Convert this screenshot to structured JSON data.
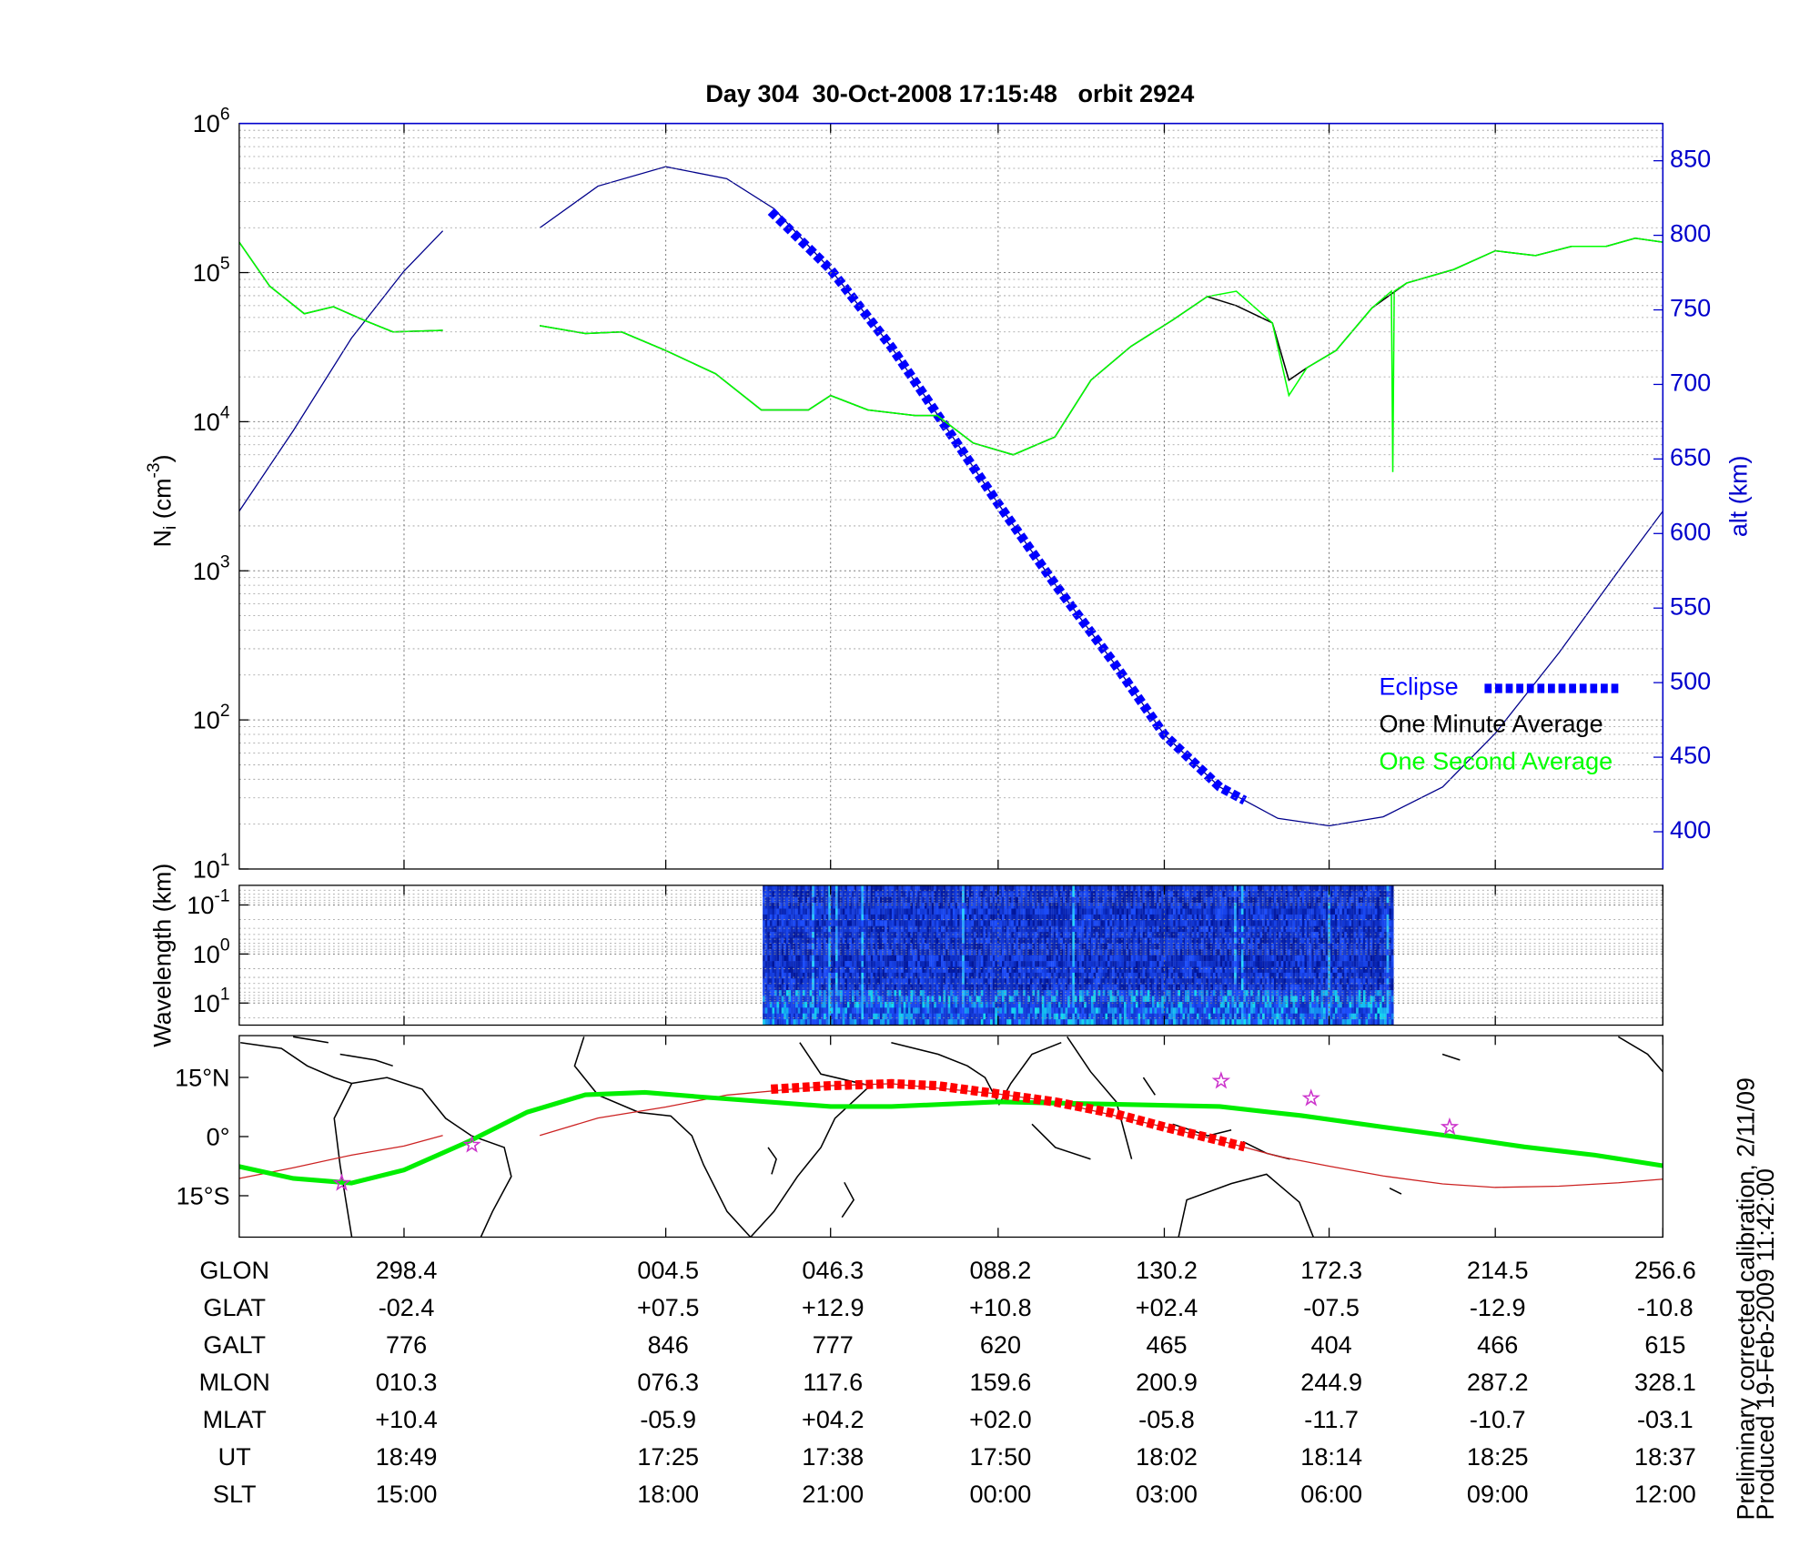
{
  "chart_data": [
    {
      "type": "line",
      "title": "Day 304  30-Oct-2008 17:15:48   orbit 2924",
      "ylabel": [
        "N",
        "i",
        " (cm",
        "-3",
        ")"
      ],
      "y2label": "alt (km)",
      "log_y": true,
      "xlim": [
        1014.2,
        1117.0
      ],
      "xticks": [
        1026.1,
        1045,
        1056.9,
        1069.0,
        1081.0,
        1092.9,
        1104.9,
        1117.0
      ],
      "ylim": [
        10,
        1000000
      ],
      "yticks": [
        {
          "value": 10,
          "label": "10",
          "exponent": "1"
        },
        {
          "value": 100,
          "label": "10",
          "exponent": "2"
        },
        {
          "value": 1000,
          "label": "10",
          "exponent": "3"
        },
        {
          "value": 10000,
          "label": "10",
          "exponent": "4"
        },
        {
          "value": 100000,
          "label": "10",
          "exponent": "5"
        },
        {
          "value": 1000000,
          "label": "10",
          "exponent": "6"
        }
      ],
      "yminorticks": [
        20,
        30,
        40,
        50,
        60,
        70,
        80,
        90,
        200,
        300,
        400,
        500,
        600,
        700,
        800,
        900,
        2000,
        3000,
        4000,
        5000,
        6000,
        7000,
        8000,
        9000,
        20000,
        30000,
        40000,
        50000,
        60000,
        70000,
        80000,
        90000,
        200000,
        300000,
        400000,
        500000,
        600000,
        700000,
        800000,
        900000
      ],
      "y2lim": [
        375,
        875
      ],
      "y2ticks": [
        400,
        450,
        500,
        550,
        600,
        650,
        700,
        750,
        800,
        850
      ],
      "grid": true,
      "legend": "lower right",
      "series": [
        {
          "color": "#00008b",
          "axis": "y2",
          "x": [
            1014.2,
            1018.1,
            1022.3,
            1026.1,
            1028.9,
            1032.4,
            1035.9,
            1040.1,
            1045,
            1049.4,
            1052.8,
            1056.9,
            1061.3,
            1064.6,
            1069.0,
            1073.1,
            1077.3,
            1081.0,
            1085.0,
            1089.2,
            1092.9,
            1096.8,
            1101.1,
            1104.9,
            1109.5,
            1113.8,
            1117.0
          ],
          "values": [
            615,
            669,
            731,
            776,
            803,
            null,
            805,
            833,
            846,
            838,
            818,
            777,
            725,
            680,
            620,
            566,
            514,
            465,
            430,
            409,
            404,
            410,
            430,
            466,
            520,
            575,
            615
          ]
        },
        {
          "name": "Eclipse",
          "color": "#0000ff",
          "axis": "y2",
          "style": "dashed",
          "x": [
            1052.6,
            1056.9,
            1061.3,
            1064.6,
            1069.0,
            1073.1,
            1077.3,
            1081.0,
            1085.0,
            1086.8
          ],
          "values": [
            816,
            777,
            725,
            680,
            620,
            566,
            514,
            465,
            430,
            421
          ]
        },
        {
          "name": "One Minute Average",
          "color": "#000000",
          "x": [
            1014.2,
            1016.4,
            1018.9,
            1021.0,
            1023.2,
            1025.3,
            1028.9,
            1032.4,
            1035.9,
            1039.2,
            1041.8,
            1045,
            1048.6,
            1051.9,
            1055.3,
            1056.9,
            1059.6,
            1063.0,
            1064.6,
            1067.2,
            1070.1,
            1073.1,
            1075.7,
            1078.6,
            1081.6,
            1084.1,
            1086.2,
            1088.8,
            1090.0,
            1091.3,
            1093.4,
            1096.0,
            1098.5,
            1101.9,
            1104.9,
            1107.8,
            1110.4,
            1112.9,
            1115.0,
            1117.0
          ],
          "values": [
            160000,
            81000,
            53000,
            59000,
            48000,
            40000,
            41000,
            null,
            44000,
            39000,
            40000,
            30000,
            21000,
            12000,
            12000,
            15000,
            12000,
            11000,
            11000,
            7200,
            6000,
            7900,
            19000,
            32000,
            48000,
            69000,
            60000,
            46000,
            19000,
            23000,
            30000,
            58000,
            85000,
            105000,
            140000,
            130000,
            150000,
            150000,
            170000,
            160000
          ]
        },
        {
          "name": "One Second Average",
          "color": "#00ff00",
          "x": [
            1014.2,
            1016.4,
            1018.9,
            1021.0,
            1023.2,
            1025.3,
            1028.9,
            1032.4,
            1035.9,
            1039.2,
            1041.8,
            1045,
            1048.6,
            1051.9,
            1055.3,
            1056.9,
            1059.6,
            1063.0,
            1064.6,
            1067.2,
            1070.1,
            1073.1,
            1075.7,
            1078.6,
            1081.6,
            1084.1,
            1086.2,
            1088.8,
            1090.0,
            1091.3,
            1093.4,
            1096.0,
            1097.4,
            1097.5,
            1097.6,
            1098.5,
            1101.9,
            1104.9,
            1107.8,
            1110.4,
            1112.9,
            1115.0,
            1117.0
          ],
          "values": [
            160000,
            81000,
            53000,
            59000,
            48000,
            40000,
            41000,
            null,
            44000,
            39000,
            40000,
            30000,
            21000,
            12000,
            12000,
            15000,
            12000,
            11000,
            11000,
            7200,
            6000,
            7900,
            19000,
            32000,
            48000,
            69000,
            75000,
            46000,
            15000,
            23000,
            30000,
            58000,
            75000,
            4600,
            75000,
            85000,
            105000,
            140000,
            130000,
            150000,
            150000,
            170000,
            160000
          ]
        }
      ]
    },
    {
      "type": "spectrogram",
      "ylabel": "Wavelength (km)",
      "log_y": true,
      "xlim": [
        1014.2,
        1117.0
      ],
      "xticks": [
        1026.1,
        1045,
        1056.9,
        1069.0,
        1081.0,
        1092.9,
        1104.9,
        1117.0
      ],
      "ylim": [
        28.2,
        0.0398
      ],
      "yticks": [
        {
          "value": 0.1,
          "label": "10",
          "exponent": "-1"
        },
        {
          "value": 1,
          "label": "10",
          "exponent": "0"
        },
        {
          "value": 10,
          "label": "10",
          "exponent": "1"
        }
      ],
      "yminorticks": [
        0.05,
        0.06,
        0.07,
        0.08,
        0.09,
        0.2,
        0.3,
        0.4,
        0.5,
        0.6,
        0.7,
        0.8,
        0.9,
        2,
        3,
        4,
        5,
        6,
        7,
        8,
        9,
        20
      ],
      "grid": true,
      "image_x": [
        1052.0,
        1097.5
      ]
    },
    {
      "type": "map",
      "xlim": [
        1014.2,
        1117.0
      ],
      "xticks": [
        1026.1,
        1045,
        1056.9,
        1069.0,
        1081.0,
        1092.9,
        1104.9,
        1117.0
      ],
      "ylim": [
        -25.5,
        25.6
      ],
      "yticks": [
        {
          "value": 15,
          "label": "15°N"
        },
        {
          "value": 0,
          "label": "0°"
        },
        {
          "value": -15,
          "label": "15°S"
        }
      ],
      "grid": false,
      "series": [
        {
          "color": "#cc2222",
          "x": [
            1014.2,
            1018.1,
            1022.3,
            1026.1,
            1028.9,
            1032.4,
            1035.9,
            1040.1,
            1045,
            1049.4,
            1056.9,
            1061.3,
            1069.0,
            1073.1,
            1081.0,
            1085.0,
            1089.2,
            1092.9,
            1096.8,
            1101.1,
            1104.9,
            1109.5,
            1113.8,
            1117.0
          ],
          "values": [
            -10.6,
            -7.9,
            -4.7,
            -2.4,
            0.3,
            null,
            0.3,
            4.7,
            7.5,
            10.5,
            12.9,
            13.4,
            10.8,
            8.8,
            2.4,
            -1.0,
            -5.0,
            -7.5,
            -10.0,
            -12.0,
            -12.9,
            -12.6,
            -11.7,
            -10.8
          ]
        },
        {
          "color": "#00ee00",
          "style": "thick",
          "x": [
            1014.2,
            1018.1,
            1022.3,
            1026.1,
            1030.8,
            1035.0,
            1039.2,
            1043.5,
            1047.7,
            1056.9,
            1061.3,
            1069.0,
            1077.3,
            1085.0,
            1090.9,
            1096.8,
            1101.9,
            1107.0,
            1112.1,
            1117.0
          ],
          "values": [
            -7.6,
            -10.6,
            -11.8,
            -8.5,
            -1.2,
            6.2,
            10.6,
            11.2,
            10.0,
            7.6,
            7.6,
            8.8,
            8.2,
            7.6,
            5.3,
            2.4,
            0,
            -2.6,
            -4.7,
            -7.4
          ]
        },
        {
          "color": "#ff0000",
          "style": "dashed",
          "x": [
            1052.6,
            1056.9,
            1061.3,
            1064.6,
            1069.0,
            1073.1,
            1077.3,
            1081.0,
            1085.0,
            1086.8
          ],
          "values": [
            12.0,
            12.9,
            13.4,
            12.9,
            10.8,
            8.8,
            5.9,
            2.4,
            -1.0,
            -2.6
          ]
        },
        {
          "color": "#cc33cc",
          "marker": "star",
          "x": [
            1021.6,
            1031.0,
            1085.1,
            1091.6,
            1101.6
          ],
          "values": [
            -11.8,
            -2.1,
            14.1,
            9.7,
            2.4
          ]
        }
      ]
    }
  ],
  "table": {
    "rows": [
      [
        "GLON",
        "298.4",
        "004.5",
        "046.3",
        "088.2",
        "130.2",
        "172.3",
        "214.5",
        "256.6"
      ],
      [
        "GLAT",
        "-02.4",
        "+07.5",
        "+12.9",
        "+10.8",
        "+02.4",
        "-07.5",
        "-12.9",
        "-10.8"
      ],
      [
        "GALT",
        "776",
        "846",
        "777",
        "620",
        "465",
        "404",
        "466",
        "615"
      ],
      [
        "MLON",
        "010.3",
        "076.3",
        "117.6",
        "159.6",
        "200.9",
        "244.9",
        "287.2",
        "328.1"
      ],
      [
        "MLAT",
        "+10.4",
        "-05.9",
        "+04.2",
        "+02.0",
        "-05.8",
        "-11.7",
        "-10.7",
        "-03.1"
      ],
      [
        "UT",
        "18:49",
        "17:25",
        "17:38",
        "17:50",
        "18:02",
        "18:14",
        "18:25",
        "18:37"
      ],
      [
        "SLT",
        "15:00",
        "18:00",
        "21:00",
        "00:00",
        "03:00",
        "06:00",
        "09:00",
        "12:00"
      ]
    ]
  },
  "footnote": [
    "Preliminary corrected calibration, 2/11/09",
    "Produced 19-Feb-2009 11:42:00"
  ]
}
